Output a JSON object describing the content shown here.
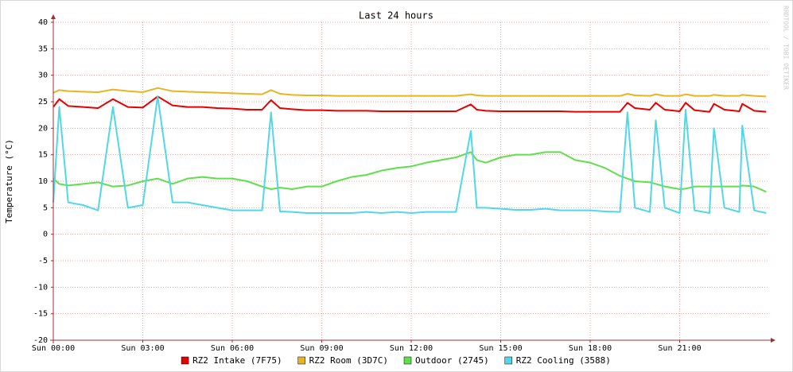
{
  "chart_data": {
    "type": "line",
    "title": "Last 24 hours",
    "y_label": "Temperature (°C)",
    "watermark": "RRDTOOL / TOBI OETIKER",
    "x": [
      0,
      0.2,
      0.5,
      1,
      1.5,
      2,
      2.5,
      3,
      3.5,
      4,
      4.5,
      5,
      5.5,
      6,
      6.5,
      7,
      7.3,
      7.6,
      8,
      8.5,
      9,
      9.5,
      10,
      10.5,
      11,
      11.5,
      12,
      12.5,
      13,
      13.5,
      14,
      14.2,
      14.5,
      15,
      15.5,
      16,
      16.5,
      17,
      17.5,
      18,
      18.5,
      19,
      19.25,
      19.5,
      20,
      20.2,
      20.5,
      21,
      21.2,
      21.5,
      22,
      22.15,
      22.5,
      23,
      23.1,
      23.5,
      23.9
    ],
    "xlim": [
      0,
      24
    ],
    "xticks": [
      {
        "value": 0,
        "label": "Sun 00:00"
      },
      {
        "value": 3,
        "label": "Sun 03:00"
      },
      {
        "value": 6,
        "label": "Sun 06:00"
      },
      {
        "value": 9,
        "label": "Sun 09:00"
      },
      {
        "value": 12,
        "label": "Sun 12:00"
      },
      {
        "value": 15,
        "label": "Sun 15:00"
      },
      {
        "value": 18,
        "label": "Sun 18:00"
      },
      {
        "value": 21,
        "label": "Sun 21:00"
      }
    ],
    "ylim": [
      -20,
      40
    ],
    "yticks": [
      -20,
      -15,
      -10,
      -5,
      0,
      5,
      10,
      15,
      20,
      25,
      30,
      35,
      40
    ],
    "grid": true,
    "series": [
      {
        "name": "RZ2 Intake (7F75)",
        "color": "#e60000",
        "values": [
          24,
          25.5,
          24.2,
          24,
          23.8,
          25.5,
          24,
          23.9,
          26,
          24.3,
          24,
          24,
          23.8,
          23.7,
          23.5,
          23.5,
          25.3,
          23.8,
          23.6,
          23.4,
          23.4,
          23.3,
          23.3,
          23.3,
          23.2,
          23.2,
          23.2,
          23.2,
          23.2,
          23.2,
          24.5,
          23.5,
          23.3,
          23.2,
          23.2,
          23.2,
          23.2,
          23.2,
          23.1,
          23.1,
          23.1,
          23.1,
          24.8,
          23.8,
          23.5,
          24.8,
          23.5,
          23.2,
          24.8,
          23.4,
          23.1,
          24.6,
          23.5,
          23.2,
          24.6,
          23.3,
          23.1
        ]
      },
      {
        "name": "RZ2 Room (3D7C)",
        "color": "#e8b520",
        "values": [
          26.7,
          27.2,
          27,
          26.9,
          26.8,
          27.3,
          27,
          26.8,
          27.6,
          27,
          26.9,
          26.8,
          26.7,
          26.6,
          26.5,
          26.4,
          27.2,
          26.5,
          26.3,
          26.2,
          26.2,
          26.1,
          26.1,
          26.1,
          26.1,
          26.1,
          26.1,
          26.1,
          26.1,
          26.1,
          26.4,
          26.2,
          26.1,
          26.1,
          26.1,
          26.1,
          26.1,
          26.1,
          26.1,
          26.1,
          26.1,
          26.1,
          26.5,
          26.2,
          26.1,
          26.4,
          26.1,
          26.1,
          26.4,
          26.1,
          26.1,
          26.3,
          26.1,
          26.1,
          26.3,
          26.1,
          26
        ]
      },
      {
        "name": "Outdoor (2745)",
        "color": "#5ee04c",
        "values": [
          10.5,
          9.5,
          9.2,
          9.5,
          9.8,
          9,
          9.2,
          10,
          10.5,
          9.5,
          10.5,
          10.8,
          10.5,
          10.5,
          10,
          9,
          8.5,
          8.8,
          8.5,
          9,
          9,
          10,
          10.8,
          11.2,
          12,
          12.5,
          12.8,
          13.5,
          14,
          14.5,
          15.5,
          14,
          13.5,
          14.5,
          15,
          15,
          15.5,
          15.5,
          14,
          13.5,
          12.5,
          11,
          10.5,
          10,
          9.8,
          9.5,
          9,
          8.5,
          8.6,
          9,
          9,
          9,
          9,
          9,
          9.2,
          9,
          8
        ]
      },
      {
        "name": "RZ2 Cooling (3588)",
        "color": "#50d8e8",
        "values": [
          6,
          24,
          6,
          5.5,
          4.5,
          24,
          5,
          5.5,
          26,
          6,
          6,
          5.5,
          5,
          4.5,
          4.5,
          4.5,
          23,
          4.3,
          4.2,
          4,
          4,
          4,
          4,
          4.2,
          4,
          4.2,
          4,
          4.2,
          4.2,
          4.2,
          19.5,
          5,
          5,
          4.8,
          4.6,
          4.6,
          4.8,
          4.5,
          4.5,
          4.5,
          4.3,
          4.2,
          23,
          5,
          4.2,
          21.5,
          5,
          4,
          23.5,
          4.5,
          4,
          20,
          5,
          4.2,
          20.5,
          4.5,
          4
        ]
      }
    ]
  }
}
